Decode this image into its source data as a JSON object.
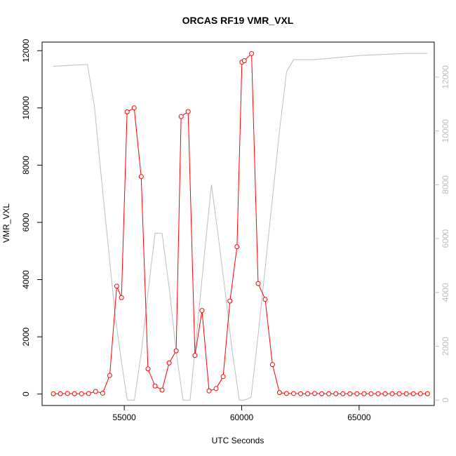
{
  "chart_data": {
    "type": "line",
    "title": "ORCAS RF19 VMR_VXL",
    "xlabel": "UTC Seconds",
    "ylabel": "VMR_VXL",
    "xlim": [
      51500,
      68200
    ],
    "ylim": [
      -400,
      12300
    ],
    "y2lim": [
      -200,
      13300
    ],
    "x_ticks": [
      55000,
      60000,
      65000
    ],
    "y_ticks": [
      0,
      2000,
      4000,
      6000,
      8000,
      10000,
      12000
    ],
    "y2_ticks": [
      0,
      2000,
      4000,
      6000,
      8000,
      10000,
      12000
    ],
    "grid": false,
    "colors": {
      "primary": "#ff0000",
      "secondary": "#bebebe"
    },
    "series": [
      {
        "axis": "left",
        "style": "line+circle-markers",
        "x": [
          51980,
          52280,
          52580,
          52880,
          53180,
          53480,
          53780,
          54080,
          54380,
          54680,
          54880,
          55120,
          55420,
          55720,
          56010,
          56310,
          56610,
          56910,
          57210,
          57420,
          57720,
          58010,
          58310,
          58610,
          58910,
          59210,
          59500,
          59800,
          60010,
          60110,
          60420,
          60700,
          61000,
          61310,
          61610,
          61910,
          62210,
          62510,
          62810,
          63110,
          63410,
          63710,
          64010,
          64310,
          64610,
          64910,
          65210,
          65510,
          65810,
          66110,
          66410,
          66710,
          67010,
          67310,
          67610,
          67910
        ],
        "y": [
          10,
          10,
          20,
          10,
          10,
          20,
          90,
          30,
          650,
          3770,
          3370,
          9860,
          10000,
          7600,
          880,
          280,
          140,
          1090,
          1510,
          9700,
          9870,
          1350,
          2920,
          110,
          190,
          610,
          3250,
          5150,
          11600,
          11650,
          11900,
          3860,
          3310,
          1030,
          50,
          20,
          20,
          10,
          10,
          20,
          10,
          10,
          10,
          10,
          10,
          10,
          10,
          10,
          10,
          10,
          10,
          10,
          10,
          10,
          10,
          10
        ]
      },
      {
        "axis": "right",
        "style": "line",
        "x": [
          51980,
          52980,
          53430,
          53730,
          54030,
          54330,
          54630,
          54900,
          55130,
          55430,
          55730,
          56010,
          56310,
          56610,
          56910,
          57210,
          57500,
          57800,
          58110,
          58400,
          58710,
          59000,
          59300,
          59600,
          59900,
          60110,
          60400,
          60710,
          61010,
          61310,
          61610,
          61910,
          62210,
          62510,
          63110,
          65010,
          67010,
          67910
        ],
        "y": [
          12400,
          12450,
          12470,
          10900,
          8200,
          5600,
          3000,
          1300,
          0,
          0,
          1800,
          4000,
          6200,
          6200,
          4200,
          1800,
          0,
          0,
          2700,
          5300,
          8000,
          6100,
          4000,
          1800,
          0,
          0,
          100,
          2500,
          5000,
          7500,
          10000,
          12200,
          12650,
          12650,
          12650,
          12800,
          12880,
          12880
        ]
      }
    ]
  }
}
